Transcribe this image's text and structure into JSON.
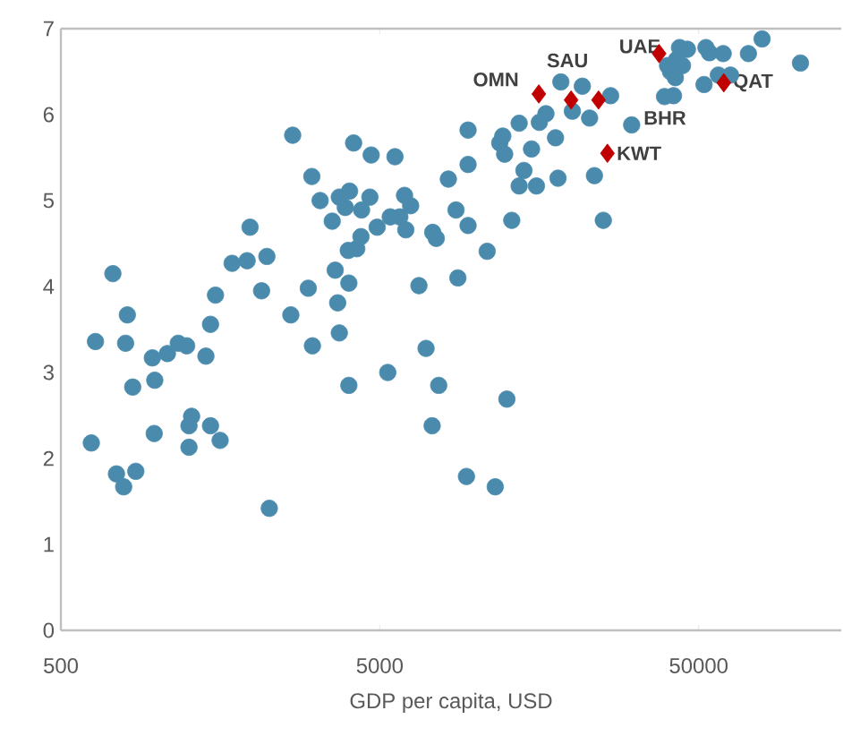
{
  "chart_data": {
    "type": "scatter",
    "xlabel": "GDP per capita, USD",
    "log": "x",
    "xlim": [
      500,
      140000
    ],
    "ylim": [
      0,
      7
    ],
    "xticks": [
      500,
      5000,
      50000
    ],
    "yticks": [
      0,
      1,
      2,
      3,
      4,
      5,
      6,
      7
    ],
    "grid": false,
    "series": [
      {
        "color": "#4a8bad",
        "marker": "circle",
        "x": [
          642,
          728,
          808,
          798,
          968,
          1079,
          1167,
          1240,
          1425,
          1473,
          1527,
          1722,
          1919,
          1960,
          2213,
          2130,
          2631,
          2666,
          2984,
          3062,
          3075,
          3251,
          3547,
          3625,
          3690,
          3734,
          3734,
          3898,
          3983,
          4020,
          4000,
          4140,
          4235,
          4365,
          4385,
          4656,
          4700,
          4907,
          5394,
          5580,
          5780,
          5980,
          6035,
          6250,
          6635,
          6985,
          5297,
          7330,
          7520,
          8670,
          9460,
          8790,
          10860,
          8205,
          9460,
          9460,
          11890,
          12155,
          12320,
          12970,
          13680,
          14160,
          15500,
          14960,
          13680,
          15830,
          16600,
          17790,
          18110,
          18490,
          20090,
          21590,
          22750,
          23560,
          25120,
          26480,
          30830,
          39080,
          41700,
          42260,
          39960,
          43550,
          46100,
          42630,
          40810,
          44490,
          52700,
          54040,
          59700,
          51990,
          57650,
          62950,
          71630,
          79050,
          104300,
          623,
          747,
          787,
          859,
          840,
          985,
          981,
          1261,
          1261,
          1285,
          1473,
          1579,
          2252,
          4000,
          7655,
          12520,
          7300,
          9350,
          11510
        ],
        "values": [
          3.36,
          4.15,
          3.67,
          3.34,
          3.17,
          3.22,
          3.34,
          3.31,
          3.19,
          3.56,
          3.9,
          4.27,
          4.3,
          4.69,
          4.35,
          3.95,
          3.67,
          5.76,
          3.98,
          5.28,
          3.31,
          5.0,
          4.76,
          4.19,
          3.81,
          3.46,
          5.04,
          4.92,
          4.42,
          5.11,
          4.04,
          5.67,
          4.44,
          4.58,
          4.89,
          5.04,
          5.53,
          4.69,
          4.81,
          5.51,
          4.81,
          5.06,
          4.66,
          4.94,
          4.01,
          3.28,
          3.0,
          4.63,
          4.56,
          4.89,
          4.71,
          4.1,
          4.41,
          5.25,
          5.42,
          5.82,
          5.67,
          5.75,
          5.54,
          4.77,
          5.17,
          5.35,
          5.17,
          5.6,
          5.9,
          5.91,
          6.01,
          5.73,
          5.26,
          6.38,
          6.04,
          6.33,
          5.96,
          5.29,
          4.77,
          6.22,
          5.88,
          6.21,
          6.22,
          6.43,
          6.57,
          6.78,
          6.76,
          6.64,
          6.5,
          6.57,
          6.78,
          6.72,
          6.71,
          6.35,
          6.46,
          6.46,
          6.71,
          6.88,
          6.6,
          2.18,
          1.82,
          1.67,
          1.85,
          2.83,
          2.91,
          2.29,
          2.13,
          2.38,
          2.49,
          2.38,
          2.21,
          1.42,
          2.85,
          2.85,
          2.69,
          2.38,
          1.79,
          1.67
        ]
      },
      {
        "color": "#c00000",
        "marker": "diamond",
        "x": [
          15770,
          19910,
          24270,
          37580,
          59960,
          25880
        ],
        "values": [
          6.24,
          6.17,
          6.17,
          6.71,
          6.37,
          5.55
        ]
      }
    ],
    "annotations": [
      {
        "text": "OMN",
        "x": 15770,
        "y": 6.24
      },
      {
        "text": "SAU",
        "x": 19910,
        "y": 6.17
      },
      {
        "text": "BHR",
        "x": 24270,
        "y": 6.17
      },
      {
        "text": "UAE",
        "x": 37580,
        "y": 6.71
      },
      {
        "text": "QAT",
        "x": 59960,
        "y": 6.37
      },
      {
        "text": "KWT",
        "x": 25880,
        "y": 5.55
      }
    ]
  }
}
